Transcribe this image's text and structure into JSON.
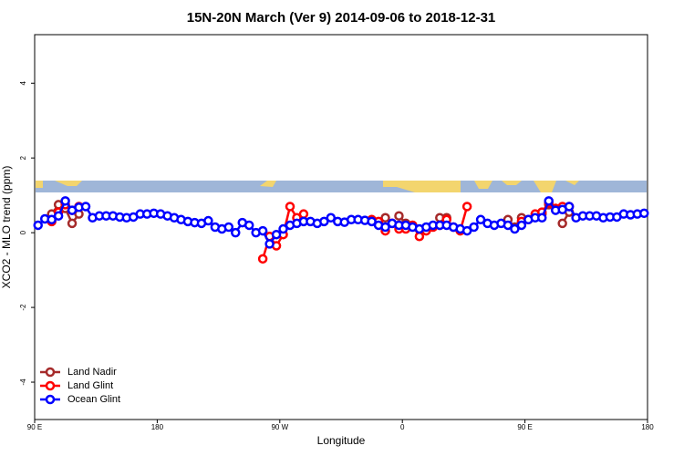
{
  "chart_data": {
    "type": "line",
    "title": "15N-20N March (Ver 9)   2014-09-06 to 2018-12-31",
    "x_label": "Longitude",
    "y_label": "XCO2 - MLO trend (ppm)",
    "xlim": [
      90,
      540
    ],
    "ylim": [
      -5,
      5.3
    ],
    "xticks": [
      {
        "value": 90,
        "label": "90 E"
      },
      180,
      {
        "value": 270,
        "label": "90 W"
      },
      {
        "value": 360,
        "label": "0"
      },
      {
        "value": 450,
        "label": "90 E"
      },
      {
        "value": 540,
        "label": "180"
      }
    ],
    "yticks": [
      -4,
      -2,
      0,
      2,
      4
    ],
    "legend": "bottom-left",
    "series": [
      {
        "name": "Land Nadir",
        "color": "#a52a2a",
        "x": [
          102.5,
          107.5,
          112.5,
          117.5,
          122.5,
          127.5,
          347.5,
          352.5,
          357.5,
          362.5,
          367.5,
          387.5,
          392.5,
          397.5,
          437.5,
          442.5,
          447.5,
          452.5,
          462.5,
          467.5,
          472.5,
          477.5,
          482.5
        ],
        "values": [
          0.5,
          0.75,
          0.65,
          0.25,
          0.5,
          null,
          0.4,
          null,
          0.45,
          0.25,
          null,
          0.4,
          0.4,
          null,
          0.35,
          0.15,
          0.4,
          null,
          0.5,
          0.75,
          null,
          0.25,
          0.55
        ]
      },
      {
        "name": "Land Glint",
        "color": "#ff0000",
        "x": [
          102.5,
          107.5,
          112.5,
          117.5,
          122.5,
          127.5,
          257.5,
          262.5,
          267.5,
          272.5,
          277.5,
          282.5,
          287.5,
          292.5,
          337.5,
          342.5,
          347.5,
          352.5,
          357.5,
          362.5,
          367.5,
          372.5,
          377.5,
          382.5,
          387.5,
          392.5,
          397.5,
          402.5,
          407.5,
          412.5,
          447.5,
          452.5,
          457.5,
          462.5,
          467.5,
          472.5,
          477.5,
          482.5
        ],
        "values": [
          0.3,
          0.55,
          0.75,
          0.6,
          0.7,
          null,
          -0.7,
          -0.1,
          -0.35,
          -0.05,
          0.7,
          0.4,
          0.5,
          null,
          0.35,
          0.3,
          0.05,
          0.25,
          0.1,
          0.1,
          0.2,
          -0.1,
          0.05,
          0.15,
          0.2,
          0.35,
          0.15,
          0.05,
          0.7,
          null,
          0.3,
          0.35,
          0.5,
          0.55,
          0.8,
          0.65,
          0.7,
          0.7
        ]
      },
      {
        "name": "Ocean Glint",
        "color": "#0000ff",
        "x": [
          92.5,
          97.5,
          102.5,
          107.5,
          112.5,
          117.5,
          122.5,
          127.5,
          132.5,
          137.5,
          142.5,
          147.5,
          152.5,
          157.5,
          162.5,
          167.5,
          172.5,
          177.5,
          182.5,
          187.5,
          192.5,
          197.5,
          202.5,
          207.5,
          212.5,
          217.5,
          222.5,
          227.5,
          232.5,
          237.5,
          242.5,
          247.5,
          252.5,
          257.5,
          262.5,
          267.5,
          272.5,
          277.5,
          282.5,
          287.5,
          292.5,
          297.5,
          302.5,
          307.5,
          312.5,
          317.5,
          322.5,
          327.5,
          332.5,
          337.5,
          342.5,
          347.5,
          352.5,
          357.5,
          362.5,
          367.5,
          372.5,
          377.5,
          382.5,
          387.5,
          392.5,
          397.5,
          402.5,
          407.5,
          412.5,
          417.5,
          422.5,
          427.5,
          432.5,
          437.5,
          442.5,
          447.5,
          452.5,
          457.5,
          462.5,
          467.5,
          472.5,
          477.5,
          482.5,
          487.5,
          492.5,
          497.5,
          502.5,
          507.5,
          512.5,
          517.5,
          522.5,
          527.5,
          532.5,
          537.5
        ],
        "values": [
          0.2,
          0.37,
          0.35,
          0.45,
          0.85,
          0.6,
          0.68,
          0.7,
          0.4,
          0.45,
          0.45,
          0.45,
          0.42,
          0.4,
          0.42,
          0.5,
          0.5,
          0.52,
          0.5,
          0.45,
          0.4,
          0.35,
          0.3,
          0.27,
          0.25,
          0.32,
          0.15,
          0.1,
          0.15,
          0.0,
          0.27,
          0.2,
          0.0,
          0.05,
          -0.3,
          -0.05,
          0.1,
          0.2,
          0.25,
          0.3,
          0.3,
          0.25,
          0.3,
          0.4,
          0.3,
          0.28,
          0.35,
          0.35,
          0.33,
          0.3,
          0.2,
          0.15,
          0.25,
          0.2,
          0.2,
          0.15,
          0.1,
          0.15,
          0.2,
          0.2,
          0.2,
          0.15,
          0.1,
          0.05,
          0.15,
          0.35,
          0.25,
          0.2,
          0.25,
          0.2,
          0.1,
          0.2,
          0.35,
          0.4,
          0.4,
          0.85,
          0.6,
          0.62,
          0.7,
          0.4,
          0.45,
          0.45,
          0.45,
          0.4,
          0.42,
          0.42,
          0.5,
          0.48,
          0.5,
          0.52
        ]
      }
    ]
  }
}
